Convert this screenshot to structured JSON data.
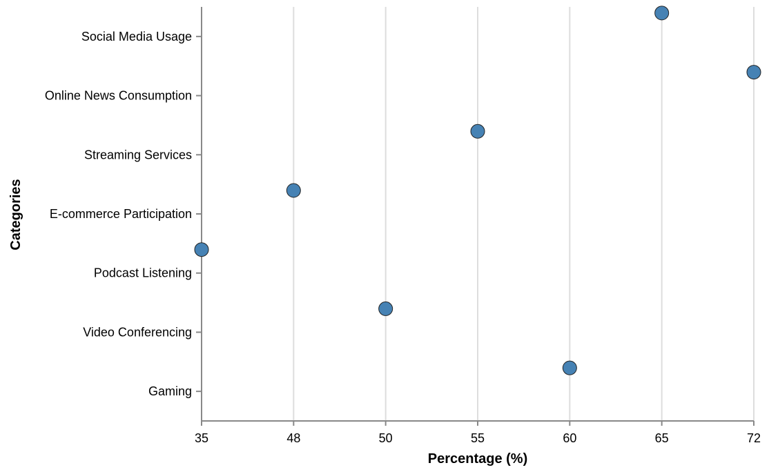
{
  "chart_data": {
    "type": "scatter",
    "xlabel": "Percentage (%)",
    "ylabel": "Categories",
    "x_ticks": [
      "35",
      "48",
      "50",
      "55",
      "60",
      "65",
      "72"
    ],
    "categories": [
      "Social Media Usage",
      "Online News Consumption",
      "Streaming Services",
      "E-commerce Participation",
      "Podcast Listening",
      "Video Conferencing",
      "Gaming"
    ],
    "values": [
      65,
      72,
      55,
      48,
      35,
      50,
      60
    ],
    "x_scale": "ordinal",
    "grid": true,
    "point_color": "#4682b4"
  }
}
